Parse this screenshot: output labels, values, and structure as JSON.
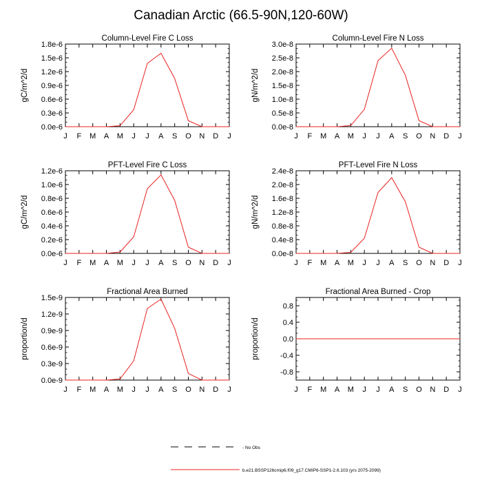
{
  "title": "Canadian Arctic (66.5-90N,120-60W)",
  "months": [
    "J",
    "F",
    "M",
    "A",
    "M",
    "J",
    "J",
    "A",
    "S",
    "O",
    "N",
    "D",
    "J"
  ],
  "legend": {
    "obs_label": "- No Obs",
    "model_label": "b.e21.BSSP126cmip6.f09_g17.CMIP6-SSP1-2.6.103 (yrs 2075-2099)",
    "model_color": "#e8201f"
  },
  "chart_data": [
    {
      "type": "line",
      "title": "Column-Level Fire C Loss",
      "ylabel": "gC/m^2/d",
      "ylim": [
        0,
        1.8e-06
      ],
      "yticks": [
        0,
        3e-07,
        6e-07,
        9e-07,
        1.2e-06,
        1.5e-06,
        1.8e-06
      ],
      "ytick_labels": [
        "0.0e-6",
        "0.3e-6",
        "0.6e-6",
        "0.9e-6",
        "1.2e-6",
        "1.5e-6",
        "1.8e-6"
      ],
      "series": [
        {
          "name": "b.e21.BSSP126cmip6.f09_g17.CMIP6-SSP1-2.6.103",
          "values": [
            0,
            0,
            0,
            0,
            2e-08,
            3.7e-07,
            1.38e-06,
            1.6e-06,
            1.05e-06,
            1.3e-07,
            0,
            0,
            0
          ]
        }
      ]
    },
    {
      "type": "line",
      "title": "Column-Level Fire N Loss",
      "ylabel": "gN/m^2/d",
      "ylim": [
        0,
        3e-08
      ],
      "yticks": [
        0,
        5e-09,
        1e-08,
        1.5e-08,
        2e-08,
        2.5e-08,
        3e-08
      ],
      "ytick_labels": [
        "0.0e-8",
        "0.5e-8",
        "1.0e-8",
        "1.5e-8",
        "2.0e-8",
        "2.5e-8",
        "3.0e-8"
      ],
      "series": [
        {
          "name": "b.e21.BSSP126cmip6.f09_g17.CMIP6-SSP1-2.6.103",
          "values": [
            0,
            0,
            0,
            0,
            4e-10,
            6.3e-09,
            2.4e-08,
            2.85e-08,
            1.87e-08,
            2.2e-09,
            0,
            0,
            0
          ]
        }
      ]
    },
    {
      "type": "line",
      "title": "PFT-Level Fire C Loss",
      "ylabel": "gC/m^2/d",
      "ylim": [
        0,
        1.2e-06
      ],
      "yticks": [
        0,
        2e-07,
        4e-07,
        6e-07,
        8e-07,
        1e-06,
        1.2e-06
      ],
      "ytick_labels": [
        "0.0e-6",
        "0.2e-6",
        "0.4e-6",
        "0.6e-6",
        "0.8e-6",
        "1.0e-6",
        "1.2e-6"
      ],
      "series": [
        {
          "name": "b.e21.BSSP126cmip6.f09_g17.CMIP6-SSP1-2.6.103",
          "values": [
            0,
            0,
            0,
            0,
            2e-08,
            2.4e-07,
            9.4e-07,
            1.14e-06,
            7.7e-07,
            9e-08,
            0,
            0,
            0
          ]
        }
      ]
    },
    {
      "type": "line",
      "title": "PFT-Level Fire N Loss",
      "ylabel": "gN/m^2/d",
      "ylim": [
        0,
        2.4e-08
      ],
      "yticks": [
        0,
        4e-09,
        8e-09,
        1.2e-08,
        1.6e-08,
        2e-08,
        2.4e-08
      ],
      "ytick_labels": [
        "0.0e-8",
        "0.4e-8",
        "0.8e-8",
        "1.2e-8",
        "1.6e-8",
        "2.0e-8",
        "2.4e-8"
      ],
      "series": [
        {
          "name": "b.e21.BSSP126cmip6.f09_g17.CMIP6-SSP1-2.6.103",
          "values": [
            0,
            0,
            0,
            0,
            3e-10,
            4.4e-09,
            1.77e-08,
            2.2e-08,
            1.5e-08,
            1.8e-09,
            0,
            0,
            0
          ]
        }
      ]
    },
    {
      "type": "line",
      "title": "Fractional Area Burned",
      "ylabel": "proportion/d",
      "ylim": [
        0,
        1.5e-09
      ],
      "yticks": [
        0,
        3e-10,
        6e-10,
        9e-10,
        1.2e-09,
        1.5e-09
      ],
      "ytick_labels": [
        "0.0e-9",
        "0.3e-9",
        "0.6e-9",
        "0.9e-9",
        "1.2e-9",
        "1.5e-9"
      ],
      "series": [
        {
          "name": "b.e21.BSSP126cmip6.f09_g17.CMIP6-SSP1-2.6.103",
          "values": [
            0,
            0,
            0,
            0,
            2e-11,
            3.5e-10,
            1.3e-09,
            1.47e-09,
            9.4e-10,
            1.2e-10,
            0,
            0,
            0
          ]
        }
      ]
    },
    {
      "type": "line",
      "title": "Fractional Area Burned - Crop",
      "ylabel": "proportion/d",
      "ylim": [
        -1,
        1
      ],
      "yticks": [
        -0.8,
        -0.4,
        0,
        0.4,
        0.8
      ],
      "ytick_labels": [
        "-0.8",
        "-0.4",
        "0.0",
        "0.4",
        "0.8"
      ],
      "series": [
        {
          "name": "b.e21.BSSP126cmip6.f09_g17.CMIP6-SSP1-2.6.103",
          "values": [
            0,
            0,
            0,
            0,
            0,
            0,
            0,
            0,
            0,
            0,
            0,
            0,
            0
          ]
        }
      ]
    }
  ]
}
